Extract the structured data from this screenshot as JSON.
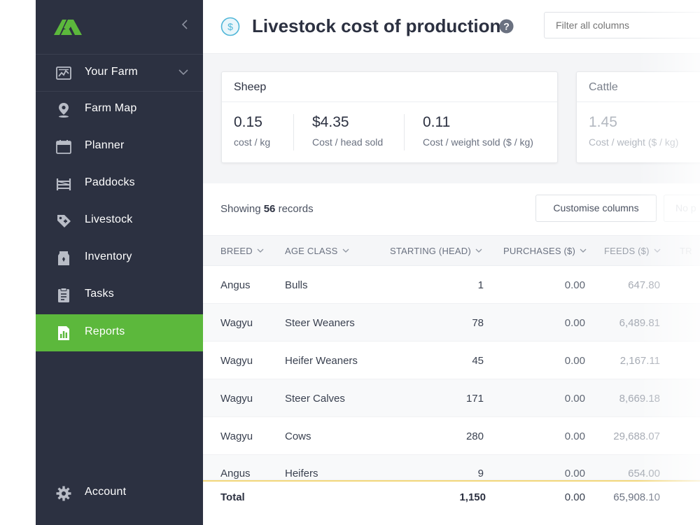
{
  "sidebar": {
    "items": [
      {
        "label": "Your Farm",
        "icon": "dashboard-icon"
      },
      {
        "label": "Farm Map",
        "icon": "map-pin-icon"
      },
      {
        "label": "Planner",
        "icon": "calendar-icon"
      },
      {
        "label": "Paddocks",
        "icon": "fence-icon"
      },
      {
        "label": "Livestock",
        "icon": "livestock-tag-icon"
      },
      {
        "label": "Inventory",
        "icon": "inventory-bag-icon"
      },
      {
        "label": "Tasks",
        "icon": "clipboard-icon"
      },
      {
        "label": "Reports",
        "icon": "report-icon"
      }
    ],
    "account": {
      "label": "Account",
      "icon": "gear-icon"
    },
    "active": "Reports",
    "colors": {
      "background": "#2c3141",
      "active": "#5cb83c"
    }
  },
  "header": {
    "title": "Livestock cost of production",
    "filter_placeholder": "Filter all columns"
  },
  "cards": [
    {
      "title": "Sheep",
      "stats": [
        {
          "value": "0.15",
          "unit": "cost / kg"
        },
        {
          "value": "$4.35",
          "unit": "Cost / head sold"
        },
        {
          "value": "0.11",
          "unit": "Cost / weight sold ($ / kg)"
        }
      ]
    },
    {
      "title": "Cattle",
      "stats": [
        {
          "value": "1.45",
          "unit": "Cost / weight ($ / kg)"
        }
      ]
    }
  ],
  "table": {
    "showing_prefix": "Showing",
    "record_count": "56",
    "showing_suffix": "records",
    "customise_label": "Customise columns",
    "ghost_button_label": "No p",
    "columns": [
      "BREED",
      "AGE CLASS",
      "STARTING (HEAD)",
      "PURCHASES ($)",
      "FEEDS ($)",
      "TR"
    ],
    "rows": [
      {
        "breed": "Angus",
        "age_class": "Bulls",
        "starting": "1",
        "purchases": "0.00",
        "feeds": "647.80"
      },
      {
        "breed": "Wagyu",
        "age_class": "Steer Weaners",
        "starting": "78",
        "purchases": "0.00",
        "feeds": "6,489.81"
      },
      {
        "breed": "Wagyu",
        "age_class": "Heifer Weaners",
        "starting": "45",
        "purchases": "0.00",
        "feeds": "2,167.11"
      },
      {
        "breed": "Wagyu",
        "age_class": "Steer Calves",
        "starting": "171",
        "purchases": "0.00",
        "feeds": "8,669.18"
      },
      {
        "breed": "Wagyu",
        "age_class": "Cows",
        "starting": "280",
        "purchases": "0.00",
        "feeds": "29,688.07"
      },
      {
        "breed": "Angus",
        "age_class": "Heifers",
        "starting": "9",
        "purchases": "0.00",
        "feeds": "654.00"
      }
    ],
    "total": {
      "label": "Total",
      "starting": "1,150",
      "purchases": "0.00",
      "feeds": "65,908.10"
    }
  }
}
